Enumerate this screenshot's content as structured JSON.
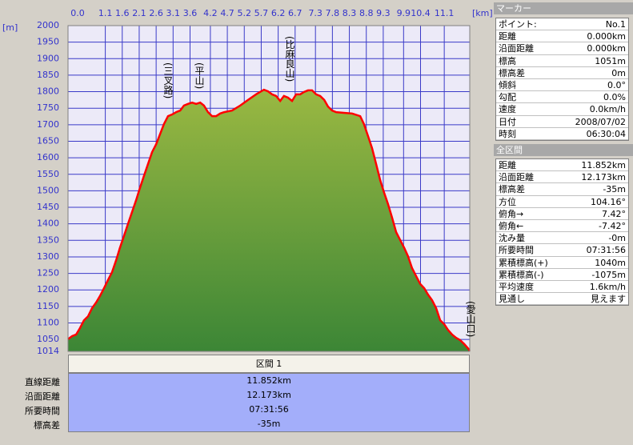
{
  "chart_data": {
    "type": "area",
    "x_unit": "[km]",
    "y_unit": "[m]",
    "annotations": [
      "(三叉路)",
      "(平山)",
      "(比麻良山)",
      "(愛山口)"
    ],
    "x": [
      0,
      0.12,
      0.24,
      0.35,
      0.47,
      0.59,
      0.71,
      0.83,
      0.94,
      1.06,
      1.18,
      1.3,
      1.42,
      1.53,
      1.65,
      1.77,
      1.89,
      2.01,
      2.12,
      2.24,
      2.36,
      2.48,
      2.6,
      2.71,
      2.83,
      2.95,
      3.07,
      3.19,
      3.31,
      3.42,
      3.54,
      3.66,
      3.78,
      3.9,
      4.01,
      4.13,
      4.25,
      4.37,
      4.49,
      4.6,
      4.84,
      5.08,
      5.31,
      5.55,
      5.78,
      5.9,
      6.02,
      6.14,
      6.26,
      6.37,
      6.49,
      6.61,
      6.73,
      6.85,
      6.96,
      7.08,
      7.2,
      7.32,
      7.44,
      7.56,
      7.67,
      7.79,
      7.91,
      8.14,
      8.38,
      8.62,
      8.73,
      8.85,
      8.97,
      9.09,
      9.21,
      9.32,
      9.44,
      9.56,
      9.68,
      9.8,
      9.92,
      10.03,
      10.15,
      10.27,
      10.39,
      10.51,
      10.62,
      10.74,
      10.86,
      10.98,
      11.1,
      11.21,
      11.33,
      11.45,
      11.57,
      11.69,
      11.81,
      11.85
    ],
    "values": [
      1051,
      1060,
      1065,
      1084,
      1108,
      1120,
      1145,
      1162,
      1181,
      1205,
      1230,
      1254,
      1290,
      1327,
      1363,
      1400,
      1436,
      1472,
      1508,
      1545,
      1581,
      1617,
      1641,
      1670,
      1702,
      1726,
      1731,
      1738,
      1743,
      1758,
      1763,
      1767,
      1763,
      1767,
      1758,
      1738,
      1726,
      1726,
      1734,
      1738,
      1743,
      1758,
      1775,
      1792,
      1806,
      1801,
      1792,
      1787,
      1772,
      1787,
      1782,
      1772,
      1792,
      1792,
      1799,
      1804,
      1804,
      1792,
      1787,
      1775,
      1755,
      1743,
      1738,
      1736,
      1734,
      1726,
      1702,
      1666,
      1629,
      1581,
      1532,
      1496,
      1460,
      1419,
      1375,
      1351,
      1327,
      1302,
      1266,
      1242,
      1218,
      1205,
      1186,
      1169,
      1145,
      1108,
      1096,
      1079,
      1065,
      1055,
      1048,
      1036,
      1022,
      1016
    ],
    "color": "#ff0000",
    "area_colors": [
      "#9ab842",
      "#3c8636"
    ],
    "xlim": [
      0,
      11.852
    ],
    "xticks": [
      {
        "value": 0,
        "label": "0.0"
      },
      1.1,
      1.6,
      2.1,
      2.6,
      3.1,
      3.6,
      4.2,
      4.7,
      5.2,
      5.7,
      6.2,
      6.7,
      7.3,
      7.8,
      8.3,
      8.8,
      9.3,
      9.9,
      10.4,
      11.1
    ],
    "ylim": [
      1014,
      2000
    ],
    "yticks": [
      1014,
      1050,
      1100,
      1150,
      1200,
      1250,
      1300,
      1350,
      1400,
      1450,
      1500,
      1550,
      1600,
      1650,
      1700,
      1750,
      1800,
      1850,
      1900,
      1950,
      2000
    ],
    "grid": true
  },
  "summary": {
    "header": "区間 1",
    "rows": [
      [
        "直線距離",
        "11.852km"
      ],
      [
        "沿面距離",
        "12.173km"
      ],
      [
        "所要時間",
        "07:31:56"
      ],
      [
        "標高差",
        "-35m"
      ]
    ]
  },
  "marker_panel": {
    "title": "マーカー",
    "rows": [
      [
        "ポイント:",
        "No.1"
      ],
      [
        "距離",
        "0.000km"
      ],
      [
        "沿面距離",
        "0.000km"
      ],
      [
        "標高",
        "1051m"
      ],
      [
        "標高差",
        "0m"
      ],
      [
        "傾斜",
        "0.0°"
      ],
      [
        "勾配",
        "0.0%"
      ],
      [
        "速度",
        "0.0km/h"
      ],
      [
        "日付",
        "2008/07/02"
      ],
      [
        "時刻",
        "06:30:04"
      ]
    ]
  },
  "section_panel": {
    "title": "全区間",
    "rows": [
      [
        "距離",
        "11.852km"
      ],
      [
        "沿面距離",
        "12.173km"
      ],
      [
        "標高差",
        "-35m"
      ],
      [
        "方位",
        "104.16°"
      ],
      [
        "俯角→",
        "7.42°"
      ],
      [
        "俯角←",
        "-7.42°"
      ],
      [
        "沈み量",
        "-0m"
      ],
      [
        "所要時間",
        "07:31:56"
      ],
      [
        "累積標高(+)",
        "1040m"
      ],
      [
        "累積標高(-)",
        "-1075m"
      ],
      [
        "平均速度",
        "1.6km/h"
      ],
      [
        "見通し",
        "見えます"
      ]
    ]
  }
}
